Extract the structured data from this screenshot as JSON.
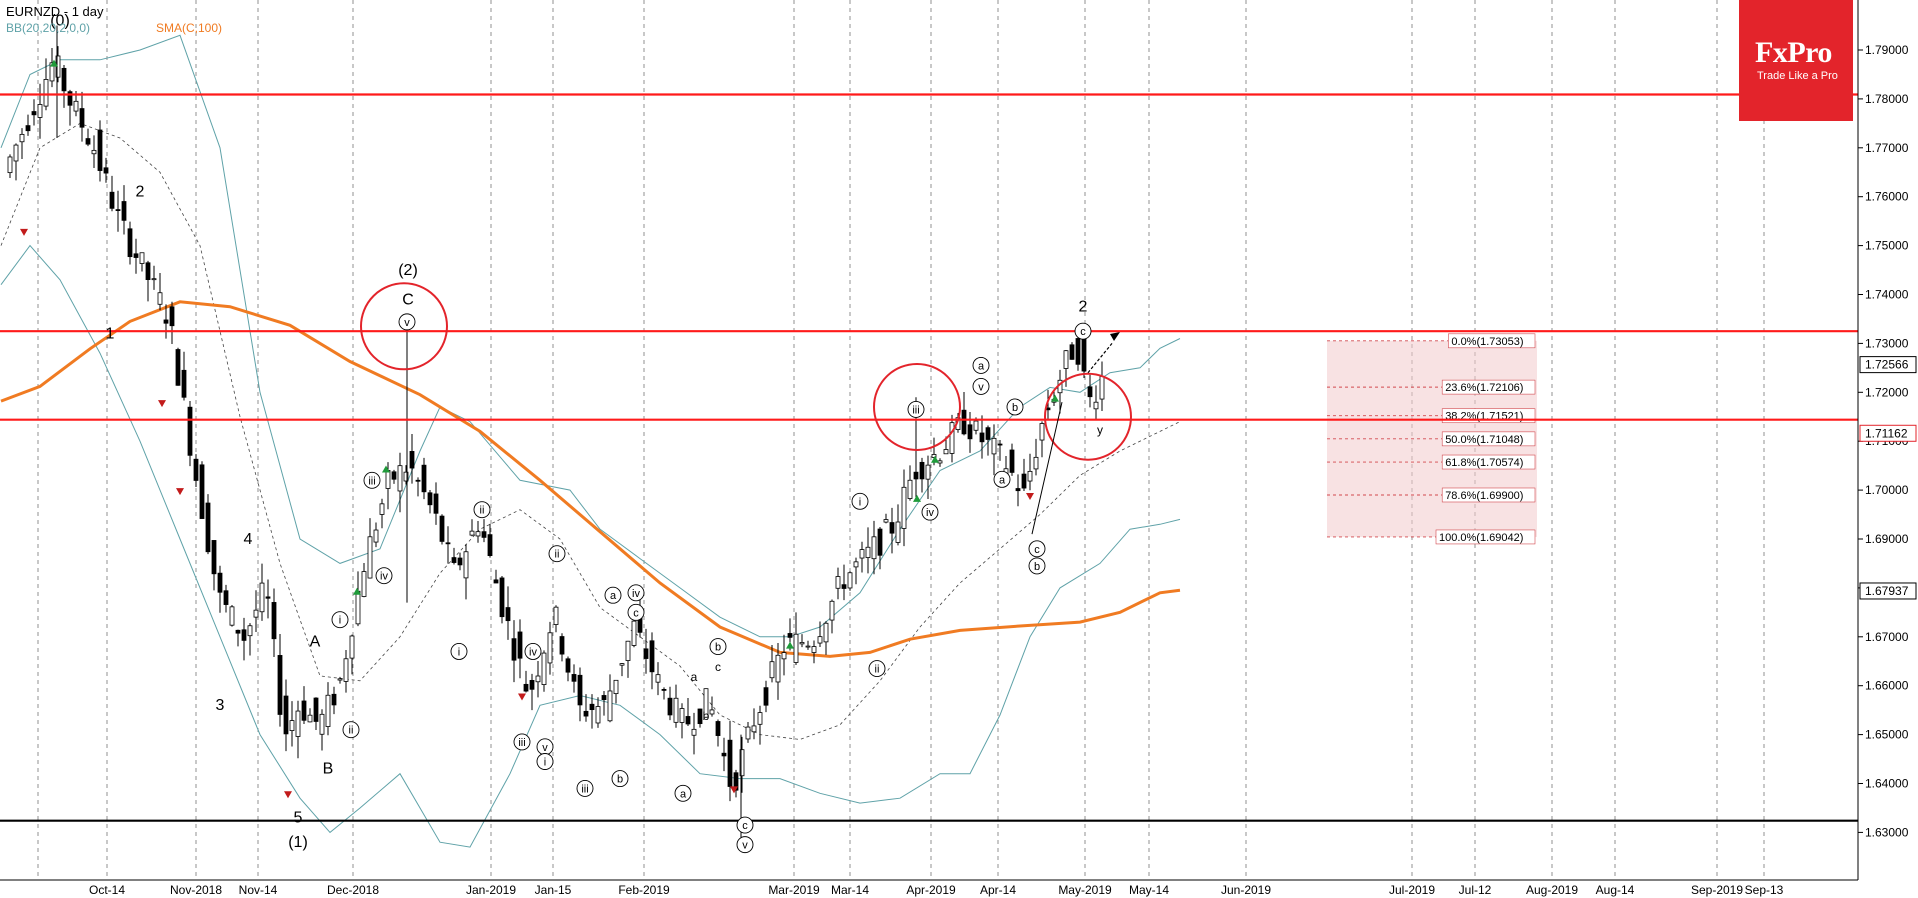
{
  "header": {
    "symbol": "EURNZD - 1 day",
    "bb_label": "BB(20,20,2,0,0)",
    "sma_label": "SMA(C,100)",
    "bb_color": "#5fa2a8",
    "sma_color": "#f07b22"
  },
  "brand": {
    "name": "FxPro",
    "tagline": "Trade Like a Pro",
    "color": "#e3242b"
  },
  "chart_data": {
    "type": "candlestick",
    "symbol": "EURNZD",
    "timeframe": "1 day",
    "ylim": [
      1.6255,
      1.7985
    ],
    "y_ticks": [
      "1.79000",
      "1.78000",
      "1.77000",
      "1.76000",
      "1.75000",
      "1.74000",
      "1.73000",
      "1.72000",
      "1.71000",
      "1.70000",
      "1.69000",
      "1.68000",
      "1.67000",
      "1.66000",
      "1.65000",
      "1.64000",
      "1.63000"
    ],
    "x_ticks": [
      "Oct-14",
      "Nov-2018",
      "Nov-14",
      "Dec-2018",
      "Jan-2019",
      "Jan-15",
      "Feb-2019",
      "Mar-2019",
      "Mar-14",
      "Apr-2019",
      "Apr-14",
      "May-2019",
      "May-14",
      "Jun-2019",
      "Jul-2019",
      "Jul-12",
      "Aug-2019",
      "Aug-14",
      "Sep-2019",
      "Sep-13"
    ],
    "price_boxes": [
      {
        "value": 1.72566,
        "label": "1.72566",
        "style": "outline"
      },
      {
        "value": 1.71162,
        "label": "1.71162",
        "style": "outline-red"
      },
      {
        "value": 1.67937,
        "label": "1.67937",
        "style": "outline"
      }
    ],
    "horizontal_levels": [
      {
        "value": 1.7809,
        "color": "red"
      },
      {
        "value": 1.7325,
        "color": "red"
      },
      {
        "value": 1.7144,
        "color": "red"
      },
      {
        "value": 1.6324,
        "color": "black"
      }
    ],
    "fibonacci": [
      {
        "label": "0.0%(1.73053)",
        "value": 1.73053
      },
      {
        "label": "23.6%(1.72106)",
        "value": 1.72106
      },
      {
        "label": "38.2%(1.71521)",
        "value": 1.71521
      },
      {
        "label": "50.0%(1.71048)",
        "value": 1.71048
      },
      {
        "label": "61.8%(1.70574)",
        "value": 1.70574
      },
      {
        "label": "78.6%(1.69900)",
        "value": 1.699
      },
      {
        "label": "100.0%(1.69042)",
        "value": 1.69042
      }
    ],
    "sma100": [
      [
        1,
        1.7182
      ],
      [
        40,
        1.7212
      ],
      [
        90,
        1.7289
      ],
      [
        130,
        1.7345
      ],
      [
        180,
        1.7385
      ],
      [
        230,
        1.7375
      ],
      [
        290,
        1.7337
      ],
      [
        350,
        1.7263
      ],
      [
        420,
        1.7195
      ],
      [
        480,
        1.712
      ],
      [
        540,
        1.702
      ],
      [
        600,
        1.6915
      ],
      [
        660,
        1.681
      ],
      [
        720,
        1.672
      ],
      [
        780,
        1.6668
      ],
      [
        830,
        1.666
      ],
      [
        870,
        1.6668
      ],
      [
        910,
        1.6695
      ],
      [
        960,
        1.6713
      ],
      [
        1020,
        1.6722
      ],
      [
        1080,
        1.673
      ],
      [
        1120,
        1.675
      ],
      [
        1160,
        1.679
      ],
      [
        1180,
        1.6795
      ]
    ],
    "bb_upper": [
      [
        1,
        1.77
      ],
      [
        30,
        1.785
      ],
      [
        60,
        1.788
      ],
      [
        100,
        1.788
      ],
      [
        140,
        1.79
      ],
      [
        180,
        1.793
      ],
      [
        220,
        1.77
      ],
      [
        260,
        1.72
      ],
      [
        300,
        1.69
      ],
      [
        340,
        1.685
      ],
      [
        380,
        1.688
      ],
      [
        420,
        1.708
      ],
      [
        440,
        1.717
      ],
      [
        470,
        1.714
      ],
      [
        520,
        1.702
      ],
      [
        570,
        1.7
      ],
      [
        600,
        1.692
      ],
      [
        640,
        1.686
      ],
      [
        680,
        1.68
      ],
      [
        720,
        1.674
      ],
      [
        760,
        1.67
      ],
      [
        790,
        1.67
      ],
      [
        820,
        1.672
      ],
      [
        860,
        1.679
      ],
      [
        900,
        1.692
      ],
      [
        940,
        1.704
      ],
      [
        980,
        1.708
      ],
      [
        1020,
        1.717
      ],
      [
        1050,
        1.721
      ],
      [
        1080,
        1.72
      ],
      [
        1110,
        1.724
      ],
      [
        1140,
        1.725
      ],
      [
        1160,
        1.729
      ],
      [
        1180,
        1.731
      ]
    ],
    "bb_middle": [
      [
        1,
        1.75
      ],
      [
        40,
        1.77
      ],
      [
        80,
        1.775
      ],
      [
        120,
        1.772
      ],
      [
        160,
        1.765
      ],
      [
        200,
        1.75
      ],
      [
        240,
        1.715
      ],
      [
        280,
        1.685
      ],
      [
        320,
        1.662
      ],
      [
        360,
        1.661
      ],
      [
        400,
        1.67
      ],
      [
        440,
        1.683
      ],
      [
        480,
        1.692
      ],
      [
        520,
        1.696
      ],
      [
        560,
        1.69
      ],
      [
        600,
        1.676
      ],
      [
        640,
        1.67
      ],
      [
        680,
        1.664
      ],
      [
        720,
        1.654
      ],
      [
        760,
        1.65
      ],
      [
        800,
        1.649
      ],
      [
        840,
        1.652
      ],
      [
        880,
        1.661
      ],
      [
        920,
        1.672
      ],
      [
        960,
        1.681
      ],
      [
        1000,
        1.688
      ],
      [
        1040,
        1.695
      ],
      [
        1080,
        1.703
      ],
      [
        1120,
        1.708
      ],
      [
        1150,
        1.711
      ],
      [
        1180,
        1.714
      ]
    ],
    "bb_lower": [
      [
        1,
        1.742
      ],
      [
        30,
        1.75
      ],
      [
        60,
        1.743
      ],
      [
        100,
        1.728
      ],
      [
        140,
        1.71
      ],
      [
        180,
        1.69
      ],
      [
        220,
        1.67
      ],
      [
        260,
        1.65
      ],
      [
        300,
        1.637
      ],
      [
        330,
        1.63
      ],
      [
        360,
        1.635
      ],
      [
        400,
        1.642
      ],
      [
        440,
        1.628
      ],
      [
        470,
        1.627
      ],
      [
        510,
        1.642
      ],
      [
        540,
        1.656
      ],
      [
        580,
        1.658
      ],
      [
        620,
        1.656
      ],
      [
        660,
        1.65
      ],
      [
        700,
        1.642
      ],
      [
        740,
        1.641
      ],
      [
        780,
        1.641
      ],
      [
        820,
        1.638
      ],
      [
        860,
        1.636
      ],
      [
        900,
        1.637
      ],
      [
        940,
        1.642
      ],
      [
        970,
        1.642
      ],
      [
        1000,
        1.654
      ],
      [
        1030,
        1.67
      ],
      [
        1060,
        1.68
      ],
      [
        1100,
        1.685
      ],
      [
        1130,
        1.692
      ],
      [
        1160,
        1.693
      ],
      [
        1180,
        1.694
      ]
    ],
    "waves": [
      {
        "text": "(0)",
        "x": 60,
        "v": 1.795,
        "size": 16
      },
      {
        "text": "2",
        "x": 140,
        "v": 1.76,
        "size": 16
      },
      {
        "text": "1",
        "x": 110,
        "v": 1.731,
        "size": 16
      },
      {
        "text": "4",
        "x": 248,
        "v": 1.689,
        "size": 16
      },
      {
        "text": "3",
        "x": 220,
        "v": 1.655,
        "size": 16
      },
      {
        "text": "A",
        "x": 315,
        "v": 1.668,
        "size": 16
      },
      {
        "text": "B",
        "x": 328,
        "v": 1.642,
        "size": 16
      },
      {
        "text": "5",
        "x": 298,
        "v": 1.632,
        "size": 16
      },
      {
        "text": "(1)",
        "x": 298,
        "v": 1.627,
        "size": 16
      },
      {
        "text": "(2)",
        "x": 408,
        "v": 1.744,
        "size": 16
      },
      {
        "text": "C",
        "x": 408,
        "v": 1.738,
        "size": 16
      },
      {
        "text": "a",
        "x": 694,
        "v": 1.661,
        "size": 12
      },
      {
        "text": "c",
        "x": 718,
        "v": 1.663,
        "size": 12
      },
      {
        "text": "b",
        "x": 706,
        "v": 1.653,
        "size": 12
      },
      {
        "text": "2",
        "x": 1083,
        "v": 1.7365,
        "size": 16
      },
      {
        "text": "y",
        "x": 1100,
        "v": 1.7115,
        "size": 12
      }
    ],
    "circled_waves": [
      {
        "text": "iii",
        "x": 372,
        "v": 1.702
      },
      {
        "text": "iv",
        "x": 384,
        "v": 1.6825
      },
      {
        "text": "i",
        "x": 340,
        "v": 1.6735
      },
      {
        "text": "ii",
        "x": 351,
        "v": 1.651
      },
      {
        "text": "v",
        "x": 407,
        "v": 1.7344
      },
      {
        "text": "ii",
        "x": 482,
        "v": 1.696
      },
      {
        "text": "i",
        "x": 459,
        "v": 1.667
      },
      {
        "text": "iv",
        "x": 533,
        "v": 1.667
      },
      {
        "text": "ii",
        "x": 557,
        "v": 1.687
      },
      {
        "text": "iii",
        "x": 522,
        "v": 1.6485
      },
      {
        "text": "v",
        "x": 545,
        "v": 1.6475
      },
      {
        "text": "i",
        "x": 545,
        "v": 1.6445
      },
      {
        "text": "a",
        "x": 613,
        "v": 1.6785
      },
      {
        "text": "iv",
        "x": 636,
        "v": 1.679
      },
      {
        "text": "c",
        "x": 636,
        "v": 1.675
      },
      {
        "text": "b",
        "x": 620,
        "v": 1.641
      },
      {
        "text": "iii",
        "x": 585,
        "v": 1.639
      },
      {
        "text": "b",
        "x": 718,
        "v": 1.668
      },
      {
        "text": "a",
        "x": 683,
        "v": 1.638
      },
      {
        "text": "c",
        "x": 745,
        "v": 1.6315
      },
      {
        "text": "v",
        "x": 745,
        "v": 1.6275
      },
      {
        "text": "iii",
        "x": 916,
        "v": 1.7165
      },
      {
        "text": "iv",
        "x": 930,
        "v": 1.6955
      },
      {
        "text": "i",
        "x": 860,
        "v": 1.6977
      },
      {
        "text": "ii",
        "x": 877,
        "v": 1.6635
      },
      {
        "text": "a",
        "x": 981,
        "v": 1.7255
      },
      {
        "text": "v",
        "x": 981,
        "v": 1.7212
      },
      {
        "text": "b",
        "x": 1015,
        "v": 1.717
      },
      {
        "text": "a",
        "x": 1002,
        "v": 1.7022
      },
      {
        "text": "c",
        "x": 1037,
        "v": 1.688
      },
      {
        "text": "b",
        "x": 1037,
        "v": 1.6845
      },
      {
        "text": "c",
        "x": 1083,
        "v": 1.7325
      }
    ],
    "highlight_circles": [
      {
        "x": 404,
        "v": 1.7335
      },
      {
        "x": 917,
        "v": 1.717
      },
      {
        "x": 1088,
        "v": 1.715
      }
    ],
    "signals_up": [
      [
        54,
        1.787
      ],
      [
        357,
        1.679
      ],
      [
        386,
        1.704
      ],
      [
        790,
        1.668
      ],
      [
        917,
        1.698
      ],
      [
        935,
        1.706
      ],
      [
        1055,
        1.7185
      ]
    ],
    "signals_down": [
      [
        24,
        1.753
      ],
      [
        162,
        1.718
      ],
      [
        180,
        1.7
      ],
      [
        288,
        1.638
      ],
      [
        522,
        1.658
      ],
      [
        734,
        1.639
      ],
      [
        1030,
        1.699
      ]
    ]
  }
}
